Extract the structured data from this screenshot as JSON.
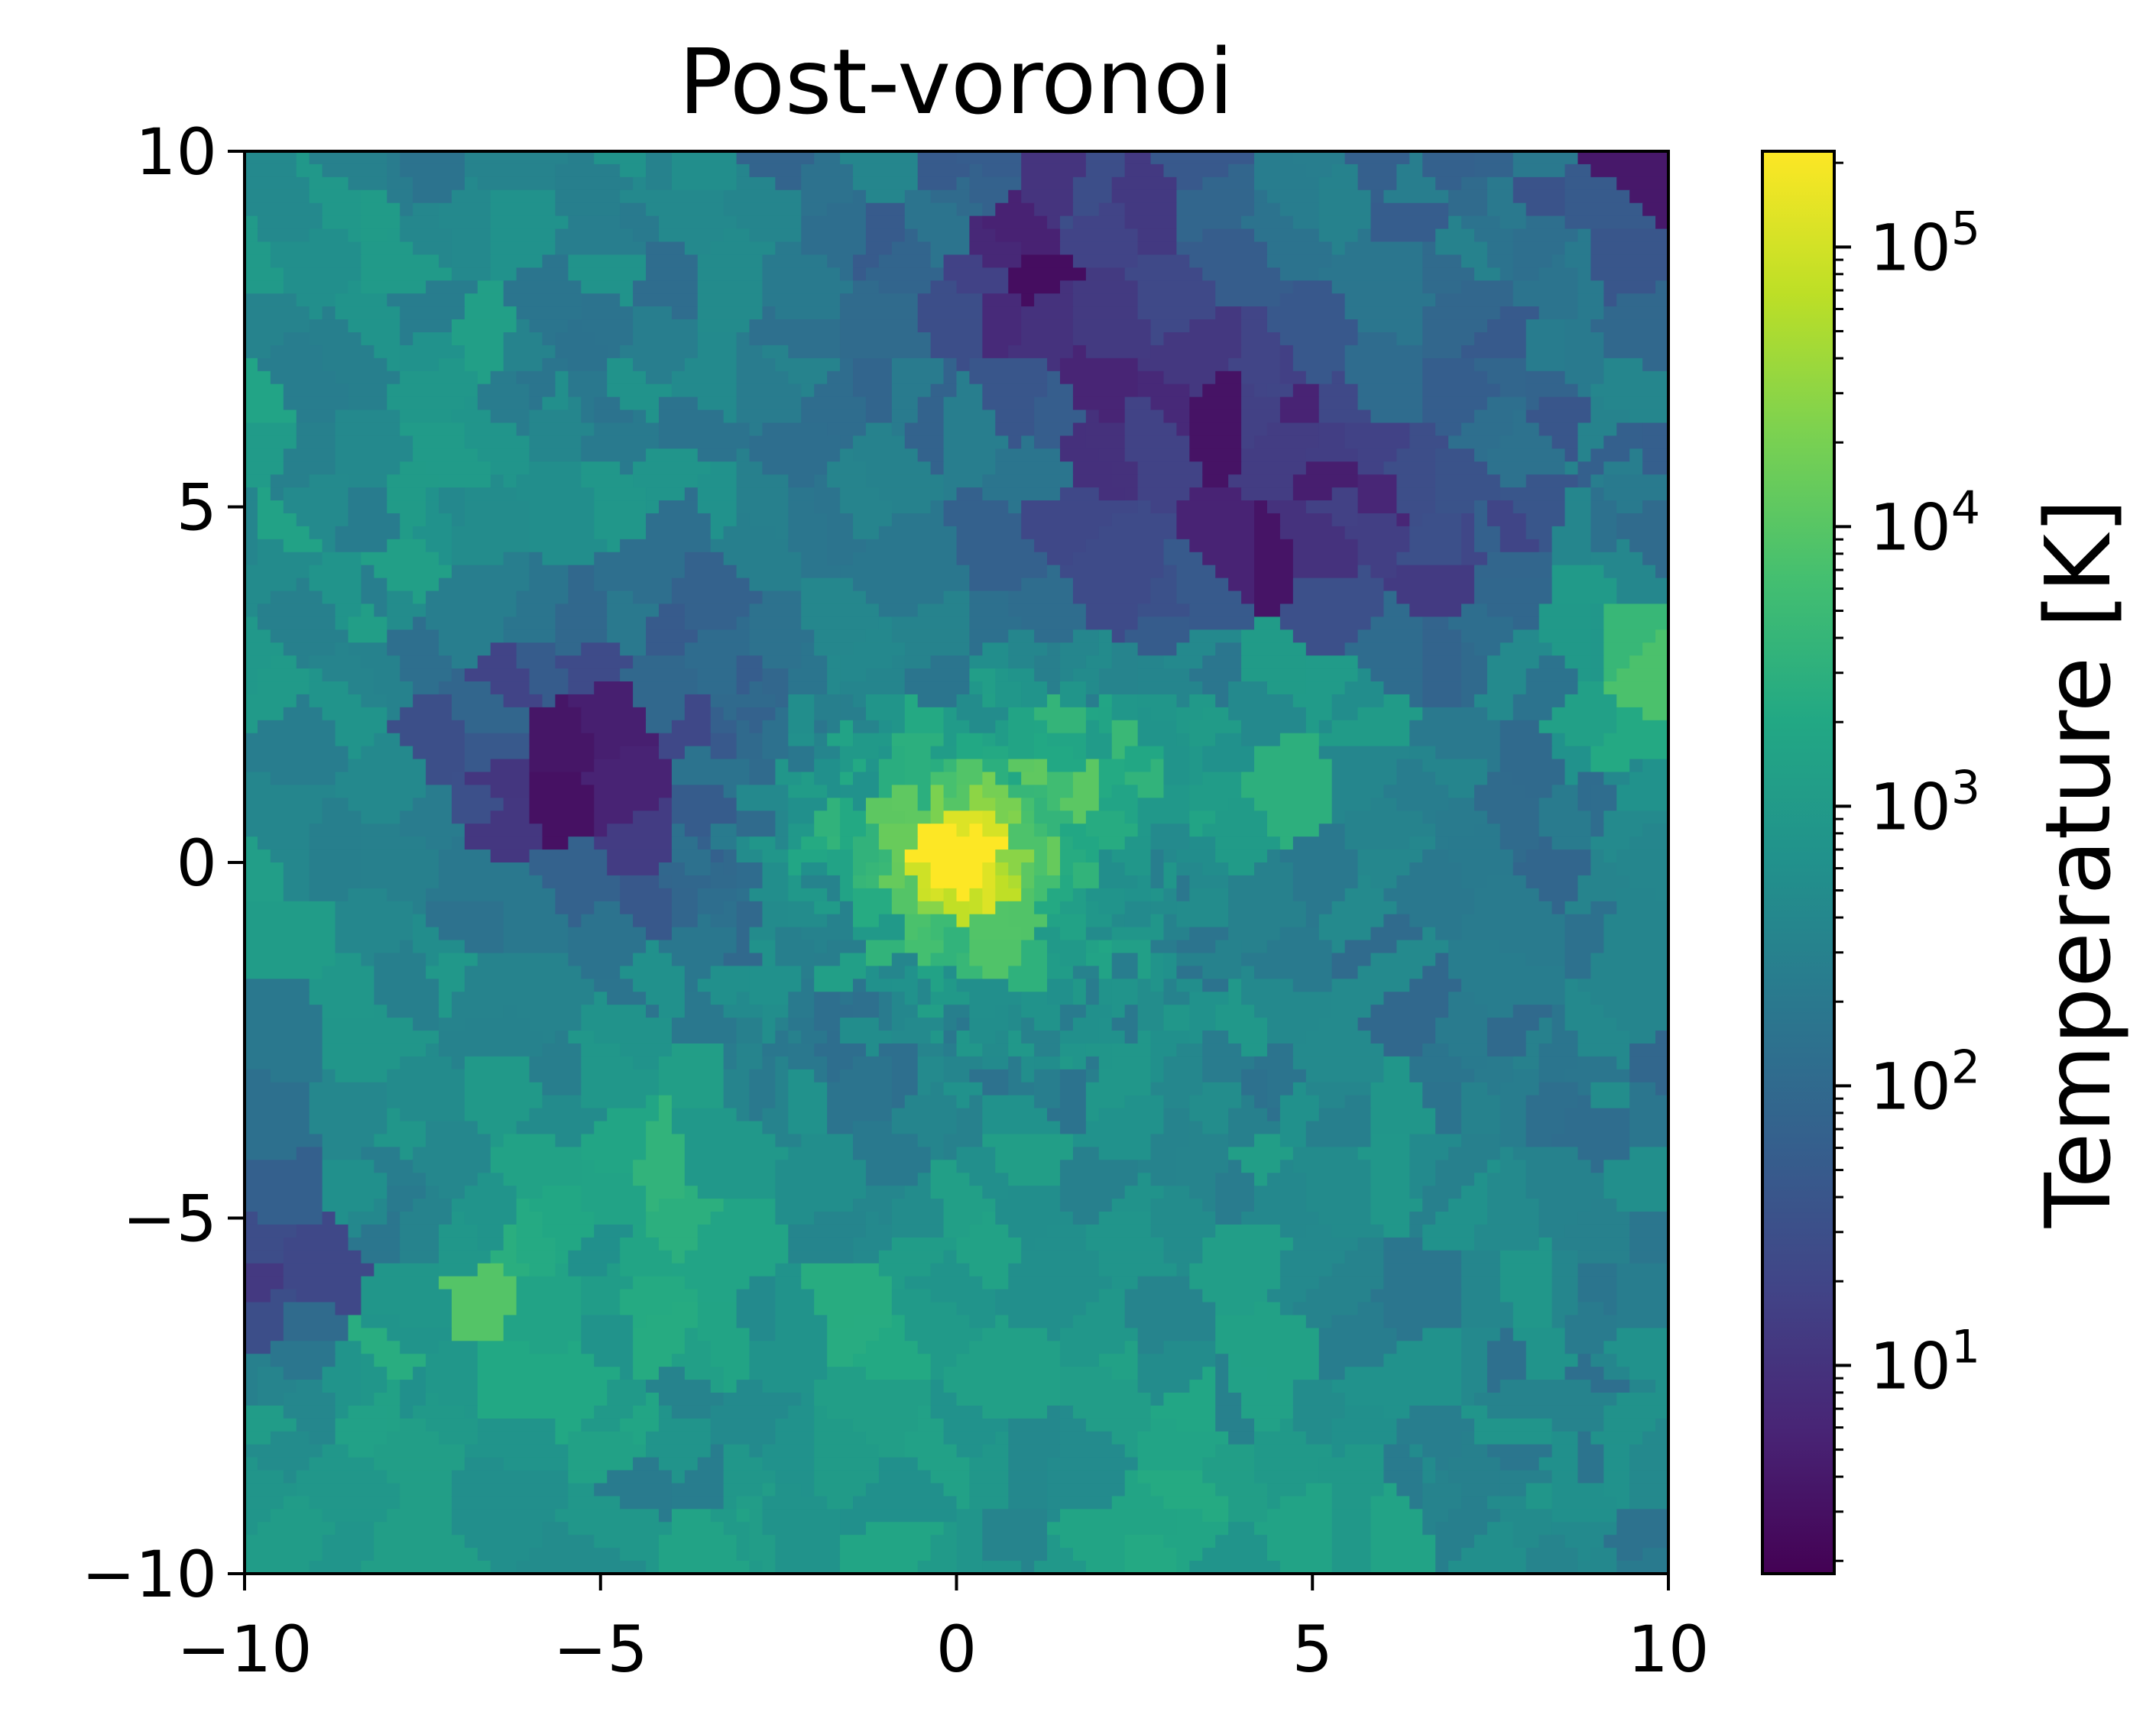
{
  "chart_data": {
    "type": "heatmap",
    "title": "Post-voronoi",
    "xlabel": "",
    "ylabel": "",
    "xlim": [
      -10,
      10
    ],
    "ylim": [
      -10,
      10
    ],
    "x_ticks": [
      -10,
      -5,
      0,
      5,
      10
    ],
    "y_ticks": [
      -10,
      -5,
      0,
      5,
      10
    ],
    "x_tick_labels": [
      "−10",
      "−5",
      "0",
      "5",
      "10"
    ],
    "y_tick_labels": [
      "−10",
      "−5",
      "0",
      "5",
      "10"
    ],
    "grid": false,
    "colormap": "viridis",
    "colorbar": {
      "label": "Temperature [K]",
      "scale": "log",
      "range": [
        1.8,
        220000
      ],
      "ticks": [
        {
          "base": "10",
          "exp": "1",
          "value": 10
        },
        {
          "base": "10",
          "exp": "2",
          "value": 100
        },
        {
          "base": "10",
          "exp": "3",
          "value": 1000
        },
        {
          "base": "10",
          "exp": "4",
          "value": 10000
        },
        {
          "base": "10",
          "exp": "5",
          "value": 100000
        }
      ]
    },
    "description_regions": [
      {
        "region": "background",
        "log10_T": 2.45
      },
      {
        "region": "upper-right cold filament",
        "log10_T": 0.45
      },
      {
        "region": "left cold pocket",
        "log10_T": 0.4
      },
      {
        "region": "central hot core",
        "log10_T": 5.2
      },
      {
        "region": "right warm clump",
        "log10_T": 4.2
      }
    ]
  }
}
